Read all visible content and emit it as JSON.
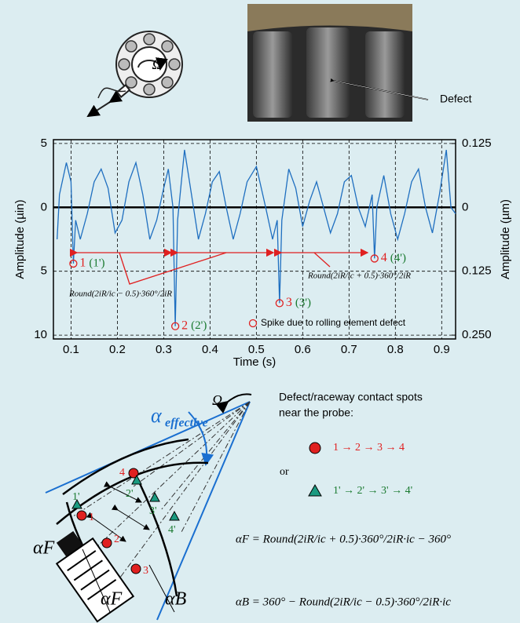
{
  "top": {
    "omega": "Ω",
    "defect_label": "Defect"
  },
  "chart_data": {
    "type": "line",
    "x_label": "Time (s)",
    "y_label": "Amplitude (µin)",
    "y2_label": "Amplitude (µm)",
    "x": [
      0.07,
      0.075,
      0.09,
      0.1,
      0.105,
      0.11,
      0.12,
      0.135,
      0.15,
      0.165,
      0.18,
      0.195,
      0.21,
      0.225,
      0.24,
      0.255,
      0.27,
      0.285,
      0.3,
      0.31,
      0.32,
      0.325,
      0.33,
      0.345,
      0.36,
      0.375,
      0.39,
      0.405,
      0.42,
      0.435,
      0.45,
      0.465,
      0.48,
      0.5,
      0.52,
      0.535,
      0.545,
      0.55,
      0.555,
      0.57,
      0.585,
      0.6,
      0.615,
      0.63,
      0.645,
      0.66,
      0.675,
      0.69,
      0.705,
      0.72,
      0.735,
      0.75,
      0.755,
      0.76,
      0.775,
      0.79,
      0.805,
      0.82,
      0.835,
      0.85,
      0.865,
      0.88,
      0.895,
      0.91,
      0.92,
      0.93
    ],
    "series": [
      {
        "color": "#1f6fc0",
        "values": [
          2.5,
          -1,
          -3.5,
          -2,
          4.4,
          1,
          2.5,
          0.5,
          -2,
          -3,
          -1.5,
          2,
          1,
          -2,
          -3.5,
          -1,
          2.5,
          1,
          -1.5,
          -3,
          0,
          9.3,
          1,
          -4.5,
          -1,
          2.5,
          0.5,
          -2,
          -2.8,
          0,
          2.5,
          0.5,
          -2,
          -3.2,
          0,
          2.5,
          1,
          7.5,
          1,
          -3,
          -1.5,
          1.5,
          -0.5,
          -2,
          0,
          2,
          0.5,
          -2,
          -2.5,
          0,
          1.5,
          -1,
          4,
          0,
          -2.5,
          0.5,
          2.5,
          0.5,
          -2,
          -3,
          0,
          2,
          -1,
          -4.5,
          0,
          0.5
        ]
      }
    ],
    "xlim": [
      0.062,
      0.93
    ],
    "xticks": [
      0.1,
      0.2,
      0.3,
      0.4,
      0.5,
      0.6,
      0.7,
      0.8,
      0.9
    ],
    "ylim": [
      -5.3,
      10.3
    ],
    "y_inverted": true,
    "yticks": [
      {
        "value": -5,
        "label": "5"
      },
      0,
      5,
      10
    ],
    "y2lim": [
      -0.1325,
      0.2575
    ],
    "y2ticks": [
      {
        "value": -0.125,
        "label": "0.125"
      },
      0,
      0.125,
      {
        "value": 0.25,
        "label": "0.250"
      }
    ],
    "grid": true,
    "markers": [
      {
        "x": 0.105,
        "y": 4.4,
        "label": "1",
        "label_alt": "(1')"
      },
      {
        "x": 0.325,
        "y": 9.3,
        "label": "2",
        "label_alt": "(2')"
      },
      {
        "x": 0.55,
        "y": 7.5,
        "label": "3",
        "label_alt": "(3')"
      },
      {
        "x": 0.755,
        "y": 4,
        "label": "4",
        "label_alt": "(4')"
      }
    ],
    "annotations": [
      "Round(2iR/ic − 0.5)·360°/2iR",
      "Round(2iR/ic + 0.5)·360°/2iR"
    ],
    "legend": "Spike due to rolling element defect"
  },
  "diagram": {
    "alpha_main": "α",
    "alpha_sub": "effective",
    "omega": "Ω",
    "title_1": "Defect/raceway contact spots",
    "title_2": "near the probe:",
    "seq_circle": "1 → 2 → 3 → 4",
    "or": "or",
    "seq_triangle": "1' → 2' → 3' → 4'",
    "circles": [
      "1",
      "2",
      "3",
      "4"
    ],
    "triangles": [
      "1'",
      "2'",
      "3'",
      "4'"
    ],
    "alpha_f": "αF",
    "alpha_f2": "αF",
    "alpha_b": "αB",
    "eq_f": "αF = Round(2iR/ic + 0.5)·360°/2iR·ic − 360°",
    "eq_b": "αB = 360° − Round(2iR/ic − 0.5)·360°/2iR·ic"
  }
}
